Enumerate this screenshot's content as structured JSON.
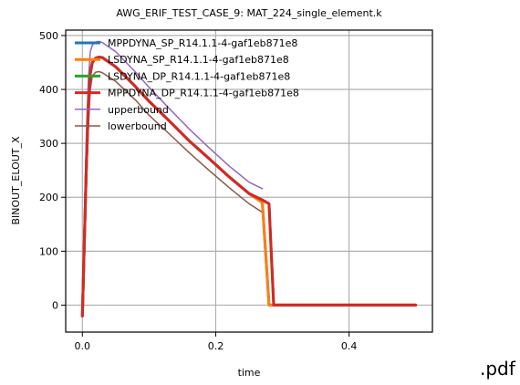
{
  "file_extension": ".pdf",
  "chart_data": {
    "type": "line",
    "title": "AWG_ERIF_TEST_CASE_9: MAT_224_single_element.k",
    "xlabel": "time",
    "ylabel": "BINOUT_ELOUT_X",
    "xlim": [
      -0.025,
      0.525
    ],
    "ylim": [
      -50,
      510
    ],
    "xticks": [
      0.0,
      0.2,
      0.4
    ],
    "xtick_labels": [
      "0.0",
      "0.2",
      "0.4"
    ],
    "yticks": [
      0,
      100,
      200,
      300,
      400,
      500
    ],
    "ytick_labels": [
      "0",
      "100",
      "200",
      "300",
      "400",
      "500"
    ],
    "grid": true,
    "legend_position": "top-left",
    "series": [
      {
        "name": "MPPDYNA_SP_R14.1.1-4-gaf1eb871e8",
        "color": "#1f77b4",
        "width": 3,
        "x": [
          0.0,
          0.003,
          0.006,
          0.009,
          0.012,
          0.015,
          0.02,
          0.025,
          0.03,
          0.05,
          0.08,
          0.1,
          0.13,
          0.16,
          0.19,
          0.22,
          0.25,
          0.27,
          0.28,
          0.5
        ],
        "y": [
          -20,
          120,
          260,
          370,
          430,
          450,
          458,
          460,
          459,
          442,
          405,
          378,
          342,
          305,
          272,
          238,
          207,
          190,
          0,
          0
        ]
      },
      {
        "name": "LSDYNA_SP_R14.1.1-4-gaf1eb871e8",
        "color": "#ff7f0e",
        "width": 3,
        "x": [
          0.0,
          0.003,
          0.006,
          0.009,
          0.012,
          0.015,
          0.02,
          0.025,
          0.03,
          0.05,
          0.08,
          0.1,
          0.13,
          0.16,
          0.19,
          0.22,
          0.25,
          0.27,
          0.28,
          0.5
        ],
        "y": [
          -20,
          120,
          260,
          370,
          430,
          450,
          458,
          460,
          459,
          442,
          405,
          378,
          342,
          305,
          272,
          238,
          207,
          190,
          0,
          0
        ]
      },
      {
        "name": "LSDYNA_DP_R14.1.1-4-gaf1eb871e8",
        "color": "#2ca02c",
        "width": 3,
        "x": [
          0.0,
          0.003,
          0.006,
          0.009,
          0.012,
          0.015,
          0.02,
          0.025,
          0.03,
          0.05,
          0.08,
          0.1,
          0.13,
          0.16,
          0.19,
          0.22,
          0.25,
          0.27,
          0.28,
          0.287,
          0.5
        ],
        "y": [
          -20,
          120,
          260,
          370,
          430,
          450,
          458,
          460,
          459,
          442,
          405,
          378,
          342,
          305,
          272,
          238,
          207,
          195,
          188,
          0,
          0
        ]
      },
      {
        "name": "MPPDYNA_DP_R14.1.1-4-gaf1eb871e8",
        "color": "#d62728",
        "width": 3,
        "x": [
          0.0,
          0.003,
          0.006,
          0.009,
          0.012,
          0.015,
          0.02,
          0.025,
          0.03,
          0.05,
          0.08,
          0.1,
          0.13,
          0.16,
          0.19,
          0.22,
          0.25,
          0.27,
          0.28,
          0.287,
          0.5
        ],
        "y": [
          -20,
          120,
          260,
          370,
          430,
          450,
          458,
          460,
          459,
          442,
          405,
          378,
          342,
          305,
          272,
          238,
          207,
          195,
          188,
          0,
          0
        ]
      },
      {
        "name": "upperbound",
        "color": "#9467bd",
        "width": 1.5,
        "x": [
          0.0,
          0.003,
          0.006,
          0.009,
          0.012,
          0.015,
          0.02,
          0.025,
          0.03,
          0.05,
          0.08,
          0.1,
          0.13,
          0.16,
          0.19,
          0.22,
          0.25,
          0.27
        ],
        "y": [
          -20,
          150,
          320,
          420,
          470,
          482,
          488,
          489,
          487,
          470,
          432,
          404,
          365,
          327,
          292,
          258,
          228,
          216
        ]
      },
      {
        "name": "lowerbound",
        "color": "#8c564b",
        "width": 1.5,
        "x": [
          0.0,
          0.003,
          0.006,
          0.009,
          0.012,
          0.015,
          0.02,
          0.025,
          0.03,
          0.05,
          0.08,
          0.1,
          0.13,
          0.16,
          0.19,
          0.22,
          0.25,
          0.27
        ],
        "y": [
          -20,
          100,
          220,
          330,
          400,
          425,
          432,
          433,
          431,
          415,
          380,
          352,
          318,
          283,
          250,
          218,
          188,
          172
        ]
      }
    ]
  }
}
